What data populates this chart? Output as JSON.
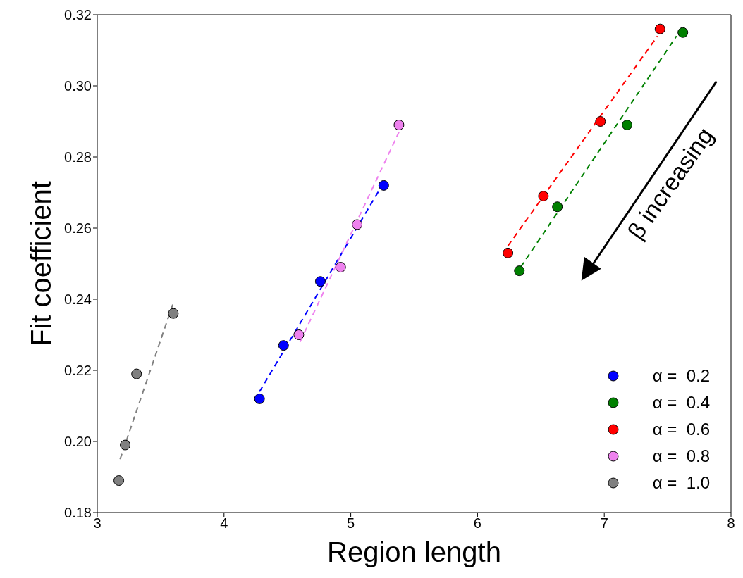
{
  "chart_data": {
    "type": "scatter",
    "xlabel": "Region length",
    "ylabel": "Fit coefficient",
    "xlim": [
      3,
      8
    ],
    "xticks": [
      3,
      4,
      5,
      6,
      7,
      8
    ],
    "ylim": [
      0.18,
      0.32
    ],
    "yticks": [
      0.18,
      {
        "value": 0.2,
        "label": "0.20"
      },
      0.22,
      0.24,
      0.26,
      0.28,
      {
        "value": 0.3,
        "label": "0.30"
      },
      0.32
    ],
    "legend": "bottom right",
    "marker": "circle",
    "grid": false,
    "annotations": [
      "β increasing"
    ],
    "series": [
      {
        "name": "α =  0.2",
        "color": "#0000ff",
        "x": [
          4.28,
          4.47,
          4.76,
          5.26
        ],
        "values": [
          0.212,
          0.227,
          0.245,
          0.272
        ]
      },
      {
        "name": "α =  0.4",
        "color": "#008000",
        "x": [
          6.33,
          6.63,
          7.18,
          7.62
        ],
        "values": [
          0.248,
          0.266,
          0.289,
          0.315
        ]
      },
      {
        "name": "α =  0.6",
        "color": "#ff0000",
        "x": [
          6.24,
          6.52,
          6.97,
          7.44
        ],
        "values": [
          0.253,
          0.269,
          0.29,
          0.316
        ]
      },
      {
        "name": "α =  0.8",
        "color": "#ee82ee",
        "x": [
          4.59,
          4.92,
          5.05,
          5.38
        ],
        "values": [
          0.23,
          0.249,
          0.261,
          0.289
        ]
      },
      {
        "name": "α =  1.0",
        "color": "#808080",
        "x": [
          3.17,
          3.22,
          3.31,
          3.6
        ],
        "values": [
          0.189,
          0.199,
          0.219,
          0.236
        ]
      },
      {
        "type": "line",
        "color": "#0000ff",
        "line_style": "dashed",
        "marker": "none",
        "x": [
          4.28,
          5.23
        ],
        "values": [
          0.214,
          0.271
        ]
      },
      {
        "type": "line",
        "color": "#008000",
        "line_style": "dashed",
        "marker": "none",
        "x": [
          6.34,
          7.57
        ],
        "values": [
          0.249,
          0.314
        ]
      },
      {
        "type": "line",
        "color": "#ff0000",
        "line_style": "dashed",
        "marker": "none",
        "x": [
          6.24,
          7.42
        ],
        "values": [
          0.255,
          0.314
        ]
      },
      {
        "type": "line",
        "color": "#ee82ee",
        "line_style": "dashed",
        "marker": "none",
        "x": [
          4.6,
          5.38
        ],
        "values": [
          0.228,
          0.287
        ]
      },
      {
        "type": "line",
        "color": "#808080",
        "line_style": "dashed",
        "marker": "none",
        "x": [
          3.18,
          3.6
        ],
        "values": [
          0.195,
          0.239
        ]
      }
    ]
  }
}
